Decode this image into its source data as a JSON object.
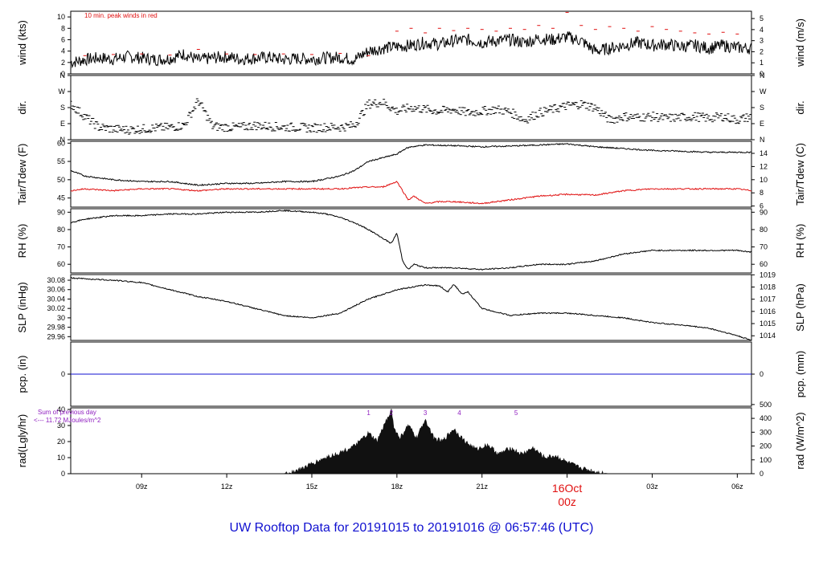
{
  "title": "UW Rooftop Data for 20191015  to  20191016 @ 06:57:46  (UTC)",
  "colors": {
    "title": "#1010d0",
    "date_marker": "#e01010",
    "red": "#e01010",
    "blue": "#1010d0",
    "purple": "#9020c0",
    "line": "#000000"
  },
  "chart_data": [
    {
      "id": "wind",
      "type": "line",
      "ylabel": "wind (kts)",
      "ylabel_right": "wind (m/s)",
      "ylim": [
        0,
        11
      ],
      "yticks": [
        0,
        2,
        4,
        6,
        8,
        10
      ],
      "yticks_right": [
        0,
        1,
        2,
        3,
        4,
        5
      ],
      "ylim_right": [
        0,
        5.66
      ],
      "annotation": "10 min. peak winds in red",
      "series": [
        {
          "color": "#000000",
          "x": [
            6.5,
            7,
            7.5,
            8,
            8.5,
            9,
            9.5,
            10,
            10.5,
            11,
            11.5,
            12,
            12.5,
            13,
            13.5,
            14,
            14.5,
            15,
            15.5,
            16,
            16.5,
            17,
            17.5,
            18,
            18.5,
            19,
            19.5,
            20,
            20.5,
            21,
            21.5,
            22,
            22.5,
            23,
            23.5,
            24,
            24.5,
            25,
            25.5,
            26,
            26.5,
            27,
            27.5,
            28,
            28.5,
            29,
            29.5,
            30,
            30.5
          ],
          "y": [
            2,
            2.5,
            2.8,
            2.6,
            3,
            2.8,
            2.5,
            2.7,
            3.5,
            2.4,
            2.8,
            3,
            2.6,
            2.8,
            2.9,
            2.5,
            2.7,
            2.6,
            2.8,
            2.9,
            2.5,
            4,
            4.5,
            4.8,
            5,
            5.5,
            5.2,
            5.8,
            6,
            5.5,
            5.8,
            6,
            5.5,
            6.2,
            6,
            6.5,
            5.8,
            4,
            4.5,
            5,
            5.5,
            5,
            5.2,
            4.8,
            5,
            4.5,
            5,
            4.6,
            4.5
          ]
        }
      ],
      "peaks": {
        "x": [
          7,
          8,
          9,
          10,
          11,
          12,
          13,
          14,
          15,
          16,
          17,
          18,
          18.5,
          19,
          19.5,
          20,
          20.5,
          21,
          21.5,
          22,
          22.5,
          23,
          23.5,
          24,
          24.5,
          25,
          25.5,
          26,
          26.5,
          27,
          27.5,
          28,
          28.5,
          29,
          29.5,
          30
        ],
        "y": [
          3.2,
          3.4,
          3.5,
          3.3,
          4.3,
          3.5,
          3.4,
          3.5,
          3.4,
          3.6,
          3.2,
          7.5,
          8,
          7.2,
          8,
          7.6,
          8,
          7.8,
          7.5,
          8,
          7.8,
          8.5,
          8,
          10.8,
          8.5,
          7.8,
          8.3,
          8,
          7.5,
          8.3,
          7.8,
          7.5,
          7.2,
          7,
          7.3,
          7
        ]
      }
    },
    {
      "id": "dir",
      "type": "scatter",
      "ylabel": "dir.",
      "ylabel_right": "dir.",
      "ylim": [
        0,
        360
      ],
      "yticks": [
        "N",
        "E",
        "S",
        "W",
        "N"
      ],
      "series": [
        {
          "color": "#000000",
          "x": [
            6.5,
            7,
            7.5,
            8,
            8.5,
            9,
            9.5,
            10,
            10.5,
            11,
            11.5,
            12,
            12.5,
            13,
            13.5,
            14,
            14.5,
            15,
            15.5,
            16,
            16.5,
            17,
            17.5,
            18,
            18.5,
            19,
            19.5,
            20,
            20.5,
            21,
            21.5,
            22,
            22.5,
            23,
            23.5,
            24,
            24.5,
            25,
            25.5,
            26,
            26.5,
            27,
            27.5,
            28,
            28.5,
            29,
            29.5,
            30,
            30.5
          ],
          "y": [
            200,
            130,
            70,
            60,
            55,
            60,
            65,
            70,
            80,
            220,
            75,
            70,
            70,
            80,
            75,
            70,
            70,
            65,
            70,
            70,
            80,
            200,
            210,
            160,
            180,
            170,
            160,
            170,
            150,
            160,
            170,
            155,
            110,
            150,
            170,
            190,
            200,
            180,
            110,
            130,
            125,
            130,
            120,
            125,
            130,
            120,
            130,
            110,
            130
          ]
        }
      ]
    },
    {
      "id": "temp",
      "type": "line",
      "ylabel": "Tair/Tdew (F)",
      "ylabel_right": "Tair/Tdew (C)",
      "ylim": [
        42.5,
        60.5
      ],
      "yticks": [
        45,
        50,
        55,
        60
      ],
      "yticks_right": [
        6,
        8,
        10,
        12,
        14
      ],
      "ylim_right": [
        5.83,
        15.83
      ],
      "series": [
        {
          "name": "Tair",
          "color": "#000000",
          "x": [
            6.5,
            7,
            8,
            9,
            10,
            11,
            12,
            13,
            14,
            15,
            16,
            16.5,
            17,
            17.5,
            18,
            18.3,
            18.5,
            19,
            20,
            21,
            22,
            23,
            24,
            25,
            26,
            27,
            28,
            29,
            30,
            30.5
          ],
          "y": [
            52.5,
            51,
            50,
            49.5,
            49.5,
            48.5,
            49,
            49,
            49.5,
            49.5,
            51,
            52.5,
            55,
            56,
            57,
            58.5,
            59,
            59.5,
            59.3,
            59,
            59.2,
            59.5,
            59.8,
            59,
            58.5,
            58,
            57.8,
            57.5,
            57.5,
            57.5
          ]
        },
        {
          "name": "Tdew",
          "color": "#e01010",
          "x": [
            6.5,
            7,
            8,
            9,
            10,
            11,
            12,
            13,
            14,
            15,
            16,
            16.5,
            17,
            17.5,
            18,
            18.2,
            18.4,
            18.6,
            19,
            19.5,
            20,
            21,
            22,
            23,
            24,
            25,
            26,
            27,
            28,
            29,
            30,
            30.5
          ],
          "y": [
            47,
            47.5,
            47,
            47.5,
            47.5,
            47,
            47.5,
            47.5,
            47.5,
            47.5,
            47.5,
            47.8,
            48,
            48,
            49.5,
            47,
            44.5,
            45.5,
            43.5,
            44,
            44,
            43.5,
            44.5,
            45.5,
            46,
            45.8,
            47,
            47.5,
            47.5,
            47.5,
            47.5,
            47
          ]
        }
      ]
    },
    {
      "id": "rh",
      "type": "line",
      "ylabel": "RH (%)",
      "ylabel_right": "RH (%)",
      "ylim": [
        55,
        92
      ],
      "yticks": [
        60,
        70,
        80,
        90
      ],
      "series": [
        {
          "color": "#000000",
          "x": [
            6.5,
            7,
            8,
            9,
            10,
            11,
            12,
            13,
            14,
            15,
            15.5,
            16,
            16.5,
            17,
            17.5,
            17.8,
            18,
            18.2,
            18.4,
            18.6,
            19,
            20,
            21,
            22,
            23,
            24,
            25,
            26,
            27,
            28,
            29,
            30,
            30.5
          ],
          "y": [
            84,
            86,
            88,
            88,
            89,
            89,
            90,
            90,
            91,
            90,
            89,
            87,
            84,
            80,
            75,
            72,
            78,
            62,
            57,
            60,
            58,
            58,
            57,
            58,
            60,
            60,
            62,
            66,
            68,
            68,
            68,
            68,
            67
          ]
        }
      ]
    },
    {
      "id": "slp",
      "type": "line",
      "ylabel": "SLP (inHg)",
      "ylabel_right": "SLP (hPa)",
      "ylim": [
        29.952,
        30.092
      ],
      "yticks": [
        29.96,
        29.98,
        30.0,
        30.02,
        30.04,
        30.06,
        30.08
      ],
      "yticks_right": [
        1014,
        1015,
        1016,
        1017,
        1018,
        1019
      ],
      "ylim_right": [
        1013.62,
        1019.02
      ],
      "series": [
        {
          "color": "#000000",
          "x": [
            6.5,
            7,
            8,
            9,
            10,
            11,
            12,
            13,
            14,
            15,
            16,
            17,
            18,
            19,
            19.5,
            19.8,
            20,
            20.3,
            20.5,
            21,
            22,
            23,
            24,
            25,
            26,
            27,
            28,
            29,
            29.5,
            30,
            30.5
          ],
          "y": [
            30.085,
            30.083,
            30.08,
            30.075,
            30.06,
            30.045,
            30.035,
            30.02,
            30.005,
            30.0,
            30.01,
            30.04,
            30.06,
            30.07,
            30.068,
            30.055,
            30.072,
            30.05,
            30.055,
            30.02,
            30.005,
            30.01,
            30.01,
            30.005,
            30.0,
            29.99,
            29.985,
            29.978,
            29.97,
            29.962,
            29.952
          ]
        }
      ]
    },
    {
      "id": "pcp",
      "type": "line",
      "ylabel": "pcp. (in)",
      "ylabel_right": "pcp. (mm)",
      "ylim": [
        -1,
        1
      ],
      "yticks": [
        0
      ],
      "yticks_right": [
        0
      ],
      "series": [
        {
          "color": "#1010d0",
          "x": [
            6.5,
            30.5
          ],
          "y": [
            0,
            0
          ]
        }
      ]
    },
    {
      "id": "rad",
      "type": "area",
      "ylabel": "rad(Lgly/hr)",
      "ylabel_right": "rad (W/m^2)",
      "ylim": [
        0,
        41
      ],
      "yticks": [
        0,
        10,
        20,
        30,
        40
      ],
      "yticks_right": [
        0,
        100,
        200,
        300,
        400,
        500
      ],
      "ylim_right": [
        0,
        476
      ],
      "annotation": [
        "Sum of previous day",
        "<--- 11.72 MJoules/m^2"
      ],
      "markers": [
        "1",
        "2",
        "3",
        "4",
        "5"
      ],
      "marker_x": [
        17.0,
        17.8,
        19.0,
        20.2,
        22.2
      ],
      "series": [
        {
          "color": "#111111",
          "x": [
            6.5,
            14,
            14.5,
            15,
            15.5,
            16,
            16.5,
            17,
            17.3,
            17.6,
            17.8,
            17.9,
            18.1,
            18.4,
            18.7,
            19.0,
            19.3,
            19.6,
            20,
            20.4,
            20.8,
            21.2,
            21.6,
            22,
            22.4,
            22.8,
            23.2,
            23.6,
            24,
            24.4,
            24.8,
            25.2,
            25.5,
            30.5
          ],
          "y": [
            0,
            0,
            2,
            6,
            10,
            13,
            17,
            25,
            20,
            32,
            40,
            28,
            22,
            30,
            22,
            34,
            22,
            20,
            28,
            20,
            15,
            18,
            12,
            16,
            12,
            16,
            10,
            11,
            7,
            4,
            2,
            0.5,
            0,
            0
          ]
        }
      ]
    }
  ],
  "x_axis": {
    "range": [
      6.5,
      30.5
    ],
    "tick_values": [
      9,
      12,
      15,
      18,
      21,
      24,
      27,
      30
    ],
    "tick_labels": [
      "09z",
      "12z",
      "15z",
      "18z",
      "21z",
      "",
      "03z",
      "06z"
    ],
    "date_label": "16Oct",
    "date_sublabel": "00z"
  }
}
